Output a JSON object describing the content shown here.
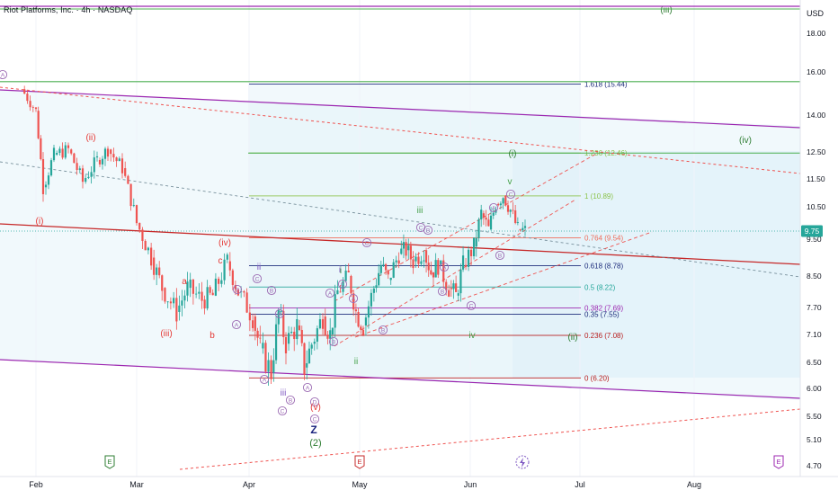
{
  "header": {
    "title": "Riot Platforms, Inc. · 4h · NASDAQ",
    "currency": "USD"
  },
  "price_axis": {
    "ticks": [
      "18.00",
      "16.00",
      "14.00",
      "12.50",
      "11.50",
      "10.50",
      "9.75",
      "9.50",
      "8.50",
      "7.70",
      "7.10",
      "6.50",
      "6.00",
      "5.50",
      "5.10",
      "4.70"
    ],
    "current_price": "9.75"
  },
  "time_axis": {
    "ticks": [
      "Feb",
      "Mar",
      "Apr",
      "May",
      "Jun",
      "Jul",
      "Aug"
    ]
  },
  "fib_levels": [
    {
      "label": "1.618 (15.44)",
      "price": 15.44,
      "color": "#1b2a7a"
    },
    {
      "label": "1.236 (12.46)",
      "price": 12.46,
      "color": "#8bc34a"
    },
    {
      "label": "1 (10.89)",
      "price": 10.89,
      "color": "#8bc34a"
    },
    {
      "label": "0.764 (9.54)",
      "price": 9.54,
      "color": "#ef6c5a"
    },
    {
      "label": "0.618 (8.78)",
      "price": 8.78,
      "color": "#1b2a7a"
    },
    {
      "label": "0.5 (8.22)",
      "price": 8.22,
      "color": "#26a69a"
    },
    {
      "label": "0.382 (7.69)",
      "price": 7.69,
      "color": "#9c27b0"
    },
    {
      "label": "0.35 (7.55)",
      "price": 7.55,
      "color": "#1b2a7a"
    },
    {
      "label": "0.236 (7.08)",
      "price": 7.08,
      "color": "#b71c1c"
    },
    {
      "label": "0 (6.20)",
      "price": 6.2,
      "color": "#b71c1c"
    }
  ],
  "wave_labels": {
    "red": [
      "(i)",
      "(ii)",
      "(iii)",
      "(iv)",
      "(v)",
      "a",
      "b",
      "c"
    ],
    "green": [
      "(i)",
      "(ii)",
      "(iii)",
      "(iv)",
      "(2)"
    ],
    "green_small": [
      "i",
      "ii",
      "iii",
      "iv",
      "v"
    ],
    "purple": [
      "ii",
      "iii",
      "i"
    ],
    "navy": [
      "Z"
    ]
  },
  "circle_labels": [
    "A",
    "B",
    "C",
    "D",
    "E"
  ],
  "event_markers": [
    "E",
    "E",
    "E"
  ],
  "colors": {
    "up": "#26a69a",
    "down": "#ef5350",
    "channel": "#9c27b0",
    "fill": "#e6f4fa"
  },
  "chart_data": {
    "type": "candlestick",
    "symbol": "Riot Platforms, Inc.",
    "interval": "4h",
    "exchange": "NASDAQ",
    "ylim": [
      4.7,
      19.2
    ],
    "x_months": [
      "Feb",
      "Mar",
      "Apr",
      "May",
      "Jun",
      "Jul",
      "Aug"
    ],
    "last_price": 9.75,
    "price_path": [
      [
        "Jan 28",
        15.2
      ],
      [
        "Feb 1",
        14.2
      ],
      [
        "Feb 3",
        11.2
      ],
      [
        "Feb 6",
        12.4
      ],
      [
        "Feb 10",
        12.6
      ],
      [
        "Feb 14",
        11.4
      ],
      [
        "Feb 18",
        12.2
      ],
      [
        "Feb 21",
        12.6
      ],
      [
        "Feb 25",
        11.9
      ],
      [
        "Mar 1",
        10.0
      ],
      [
        "Mar 5",
        9.0
      ],
      [
        "Mar 8",
        8.2
      ],
      [
        "Mar 12",
        7.6
      ],
      [
        "Mar 15",
        8.2
      ],
      [
        "Mar 19",
        7.9
      ],
      [
        "Mar 22",
        8.0
      ],
      [
        "Mar 26",
        8.9
      ],
      [
        "Mar 29",
        8.1
      ],
      [
        "Apr 2",
        7.5
      ],
      [
        "Apr 4",
        6.8
      ],
      [
        "Apr 7",
        6.3
      ],
      [
        "Apr 9",
        7.6
      ],
      [
        "Apr 11",
        6.9
      ],
      [
        "Apr 14",
        7.3
      ],
      [
        "Apr 16",
        6.4
      ],
      [
        "Apr 18",
        6.9
      ],
      [
        "Apr 21",
        7.5
      ],
      [
        "Apr 23",
        7.1
      ],
      [
        "Apr 25",
        8.1
      ],
      [
        "Apr 28",
        8.5
      ],
      [
        "Apr 30",
        7.6
      ],
      [
        "May 2",
        7.3
      ],
      [
        "May 5",
        8.2
      ],
      [
        "May 7",
        8.8
      ],
      [
        "May 9",
        8.4
      ],
      [
        "May 12",
        9.1
      ],
      [
        "May 14",
        9.2
      ],
      [
        "May 16",
        8.9
      ],
      [
        "May 19",
        9.2
      ],
      [
        "May 21",
        8.6
      ],
      [
        "May 23",
        8.8
      ],
      [
        "May 26",
        8.2
      ],
      [
        "May 28",
        8.0
      ],
      [
        "May 30",
        8.8
      ],
      [
        "Jun 2",
        9.3
      ],
      [
        "Jun 4",
        10.3
      ],
      [
        "Jun 6",
        9.8
      ],
      [
        "Jun 8",
        10.6
      ],
      [
        "Jun 10",
        10.9
      ],
      [
        "Jun 12",
        10.4
      ],
      [
        "Jun 14",
        9.8
      ],
      [
        "Jun 16",
        9.75
      ]
    ]
  }
}
